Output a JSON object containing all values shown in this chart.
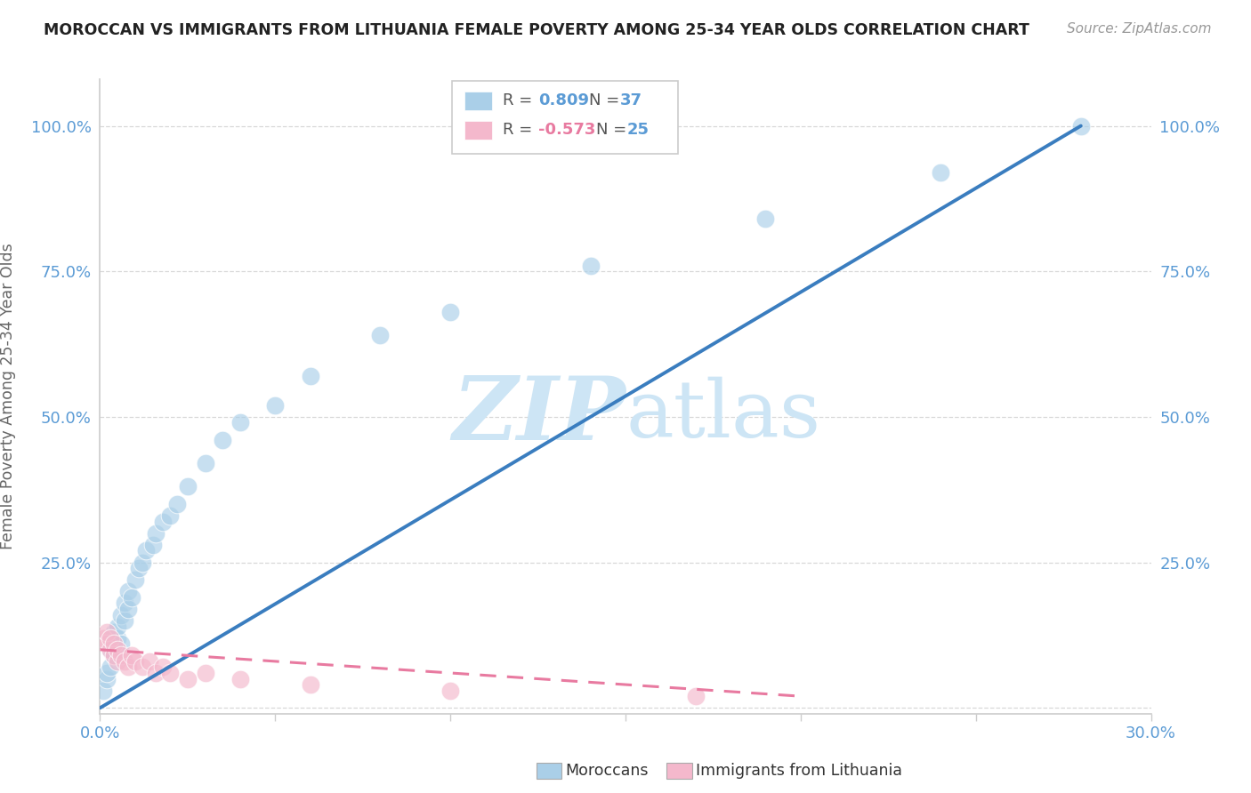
{
  "title": "MOROCCAN VS IMMIGRANTS FROM LITHUANIA FEMALE POVERTY AMONG 25-34 YEAR OLDS CORRELATION CHART",
  "source": "Source: ZipAtlas.com",
  "xlim": [
    0.0,
    0.3
  ],
  "ylim": [
    -0.01,
    1.08
  ],
  "ylabel": "Female Poverty Among 25-34 Year Olds",
  "r1_value": "0.809",
  "r2_value": "-0.573",
  "n1_value": "37",
  "n2_value": "25",
  "blue_scatter_color": "#aacfe8",
  "pink_scatter_color": "#f4b8cc",
  "blue_line_color": "#3a7dbf",
  "pink_line_color": "#e87aa0",
  "blue_text_color": "#5b9bd5",
  "pink_text_color": "#e87aa0",
  "watermark_color": "#cde5f5",
  "background_color": "#ffffff",
  "grid_color": "#cccccc",
  "axis_text_color": "#5b9bd5",
  "ylabel_color": "#666666",
  "title_color": "#222222",
  "source_color": "#999999",
  "moroccans_x": [
    0.001,
    0.002,
    0.002,
    0.003,
    0.003,
    0.004,
    0.004,
    0.005,
    0.005,
    0.006,
    0.006,
    0.007,
    0.007,
    0.008,
    0.008,
    0.009,
    0.01,
    0.011,
    0.012,
    0.013,
    0.015,
    0.016,
    0.018,
    0.02,
    0.022,
    0.025,
    0.03,
    0.035,
    0.04,
    0.05,
    0.06,
    0.08,
    0.1,
    0.14,
    0.19,
    0.24,
    0.28
  ],
  "moroccans_y": [
    0.03,
    0.05,
    0.06,
    0.07,
    0.1,
    0.09,
    0.13,
    0.12,
    0.14,
    0.11,
    0.16,
    0.15,
    0.18,
    0.17,
    0.2,
    0.19,
    0.22,
    0.24,
    0.25,
    0.27,
    0.28,
    0.3,
    0.32,
    0.33,
    0.35,
    0.38,
    0.42,
    0.46,
    0.49,
    0.52,
    0.57,
    0.64,
    0.68,
    0.76,
    0.84,
    0.92,
    1.0
  ],
  "lithuania_x": [
    0.001,
    0.002,
    0.002,
    0.003,
    0.003,
    0.004,
    0.004,
    0.005,
    0.005,
    0.006,
    0.007,
    0.008,
    0.009,
    0.01,
    0.012,
    0.014,
    0.016,
    0.018,
    0.02,
    0.025,
    0.03,
    0.04,
    0.06,
    0.1,
    0.17
  ],
  "lithuania_y": [
    0.12,
    0.11,
    0.13,
    0.1,
    0.12,
    0.09,
    0.11,
    0.08,
    0.1,
    0.09,
    0.08,
    0.07,
    0.09,
    0.08,
    0.07,
    0.08,
    0.06,
    0.07,
    0.06,
    0.05,
    0.06,
    0.05,
    0.04,
    0.03,
    0.02
  ],
  "blue_line_x0": 0.0,
  "blue_line_y0": 0.0,
  "blue_line_x1": 0.28,
  "blue_line_y1": 1.0,
  "pink_line_x0": 0.0,
  "pink_line_y0": 0.1,
  "pink_line_x1": 0.2,
  "pink_line_y1": 0.02
}
